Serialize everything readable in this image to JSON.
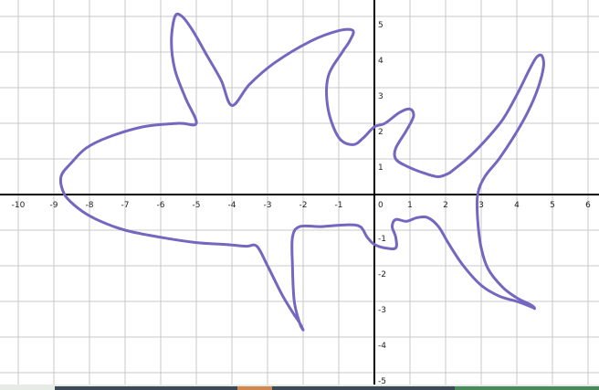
{
  "graph": {
    "x_range": [
      -10.5,
      6.5
    ],
    "y_range": [
      -5.2,
      5.1
    ],
    "x_tick_labels": [
      "-10",
      "-9",
      "-8",
      "-7",
      "-6",
      "-5",
      "-4",
      "-3",
      "-2",
      "-1",
      "0",
      "1",
      "2",
      "3",
      "4",
      "5",
      "6"
    ],
    "y_tick_labels": [
      "5",
      "4",
      "3",
      "2",
      "1",
      "-1",
      "-2",
      "-3",
      "-4",
      "-5"
    ],
    "grid": true,
    "colors": {
      "grid": "#c8c8c8",
      "axis": "#000000",
      "curve": "#7566c0"
    },
    "freehand_curve": {
      "description_free": true,
      "points": [
        [
          2.1,
          0.6
        ],
        [
          1.8,
          0.5
        ],
        [
          1.4,
          0.6
        ],
        [
          0.9,
          0.8
        ],
        [
          0.6,
          1.0
        ],
        [
          0.6,
          1.3
        ],
        [
          0.9,
          1.8
        ],
        [
          1.1,
          2.2
        ],
        [
          1.0,
          2.4
        ],
        [
          0.7,
          2.3
        ],
        [
          0.3,
          2.0
        ],
        [
          0.0,
          1.9
        ],
        [
          -0.3,
          1.6
        ],
        [
          -0.6,
          1.4
        ],
        [
          -1.0,
          1.6
        ],
        [
          -1.3,
          2.4
        ],
        [
          -1.3,
          3.3
        ],
        [
          -0.9,
          4.0
        ],
        [
          -0.7,
          4.3
        ],
        [
          -0.6,
          4.6
        ],
        [
          -1.0,
          4.6
        ],
        [
          -1.8,
          4.3
        ],
        [
          -2.8,
          3.7
        ],
        [
          -3.5,
          3.1
        ],
        [
          -4.0,
          2.5
        ],
        [
          -4.3,
          3.2
        ],
        [
          -4.7,
          3.9
        ],
        [
          -5.1,
          4.6
        ],
        [
          -5.4,
          5.0
        ],
        [
          -5.6,
          5.0
        ],
        [
          -5.7,
          4.3
        ],
        [
          -5.6,
          3.5
        ],
        [
          -5.3,
          2.7
        ],
        [
          -5.0,
          2.0
        ],
        [
          -5.5,
          2.0
        ],
        [
          -6.5,
          1.9
        ],
        [
          -7.5,
          1.6
        ],
        [
          -8.1,
          1.3
        ],
        [
          -8.5,
          0.9
        ],
        [
          -8.8,
          0.5
        ],
        [
          -8.7,
          0.0
        ],
        [
          -8.3,
          -0.4
        ],
        [
          -7.8,
          -0.7
        ],
        [
          -7.0,
          -1.0
        ],
        [
          -6.0,
          -1.2
        ],
        [
          -5.0,
          -1.35
        ],
        [
          -4.2,
          -1.4
        ],
        [
          -3.6,
          -1.45
        ],
        [
          -3.3,
          -1.45
        ],
        [
          -3.0,
          -2.0
        ],
        [
          -2.6,
          -2.8
        ],
        [
          -2.3,
          -3.3
        ],
        [
          -2.1,
          -3.6
        ],
        [
          -2.0,
          -3.8
        ],
        [
          -2.1,
          -3.6
        ],
        [
          -2.25,
          -3.0
        ],
        [
          -2.3,
          -2.0
        ],
        [
          -2.3,
          -1.2
        ],
        [
          -2.1,
          -0.9
        ],
        [
          -1.5,
          -0.9
        ],
        [
          -0.8,
          -0.85
        ],
        [
          -0.4,
          -0.9
        ],
        [
          -0.2,
          -1.2
        ],
        [
          0.0,
          -1.4
        ],
        [
          0.3,
          -1.5
        ],
        [
          0.6,
          -1.5
        ],
        [
          0.6,
          -1.2
        ],
        [
          0.5,
          -0.9
        ],
        [
          0.6,
          -0.7
        ],
        [
          0.9,
          -0.75
        ],
        [
          1.2,
          -0.65
        ],
        [
          1.5,
          -0.65
        ],
        [
          1.8,
          -0.9
        ],
        [
          2.1,
          -1.4
        ],
        [
          2.5,
          -2.0
        ],
        [
          3.0,
          -2.55
        ],
        [
          3.5,
          -2.85
        ],
        [
          4.0,
          -3.0
        ],
        [
          4.4,
          -3.15
        ],
        [
          4.5,
          -3.2
        ],
        [
          4.4,
          -3.1
        ],
        [
          4.0,
          -2.9
        ],
        [
          3.6,
          -2.6
        ],
        [
          3.2,
          -2.1
        ],
        [
          3.0,
          -1.5
        ],
        [
          2.9,
          -0.7
        ],
        [
          2.9,
          0.0
        ],
        [
          3.1,
          0.5
        ],
        [
          3.5,
          1.0
        ],
        [
          3.9,
          1.6
        ],
        [
          4.3,
          2.3
        ],
        [
          4.6,
          3.0
        ],
        [
          4.75,
          3.6
        ],
        [
          4.7,
          3.9
        ],
        [
          4.55,
          3.85
        ],
        [
          4.35,
          3.5
        ],
        [
          4.0,
          2.8
        ],
        [
          3.6,
          2.1
        ],
        [
          3.1,
          1.5
        ],
        [
          2.6,
          1.0
        ],
        [
          2.1,
          0.6
        ]
      ]
    }
  },
  "taskbar": {
    "accent_colors": [
      "#3b4a55",
      "#d08850",
      "#3b4a55",
      "#4a8a5a"
    ]
  }
}
